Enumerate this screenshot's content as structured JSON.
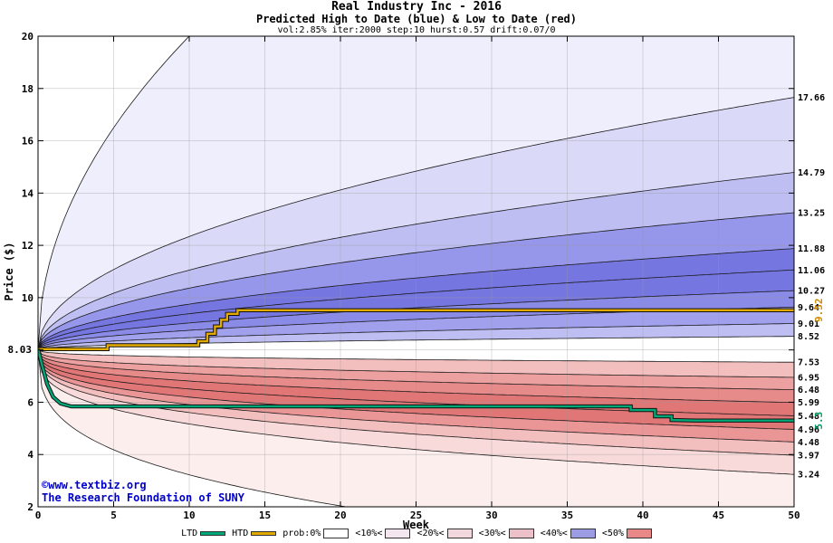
{
  "title": "Real Industry Inc - 2016",
  "subtitle": "Predicted High to Date (blue) &  Low to Date (red)",
  "params": "vol:2.85% iter:2000 step:10 hurst:0.57 drift:0.07/0",
  "watermark": {
    "line1": "©www.textbiz.org",
    "line2": "The Research Foundation of SUNY",
    "color": "#0000cc"
  },
  "legend": {
    "ltd_label": "LTD",
    "htd_label": "HTD",
    "prob_items": [
      {
        "label": "prob:0%",
        "color": "#ffffff"
      },
      {
        "label": "<10%<",
        "color": "#f4e6ee"
      },
      {
        "label": "<20%<",
        "color": "#f2d8dc"
      },
      {
        "label": "<30%<",
        "color": "#edbfc9"
      },
      {
        "label": "<40%<",
        "color": "#9c9ce4"
      },
      {
        "label": "<50%",
        "color": "#e88888"
      }
    ]
  },
  "chart_data": {
    "type": "area",
    "title": "Real Industry Inc - 2016",
    "xlabel": "Week",
    "ylabel": "Price ($)",
    "xlim": [
      0,
      50
    ],
    "ylim": [
      2,
      20
    ],
    "xticks": [
      0,
      5,
      10,
      15,
      20,
      25,
      30,
      35,
      40,
      45,
      50
    ],
    "yticks": [
      2,
      4,
      6,
      8,
      10,
      12,
      14,
      16,
      18,
      20
    ],
    "grid": true,
    "start_value": 8.03,
    "start_label": "8.03",
    "upper_fan": {
      "description": "predicted high-to-date probability bands (blue)",
      "shape_exponent": 0.5,
      "line_ends": [
        8.52,
        9.01,
        9.64,
        10.27,
        11.06,
        11.88,
        13.25,
        14.79,
        17.66
      ],
      "labels": [
        "8.52",
        "9.01",
        "9.64",
        "10.27",
        "11.06",
        "11.88",
        "13.25",
        "14.79",
        "17.66"
      ],
      "envelope_end": 34.8,
      "band_colors": [
        "#bebef3",
        "#a0a0ed",
        "#8a8ae7",
        "#7676e1",
        "#7676e1",
        "#9696ea",
        "#bebef3",
        "#dadaf8",
        "#eeeefd"
      ]
    },
    "lower_fan": {
      "description": "predicted low-to-date probability bands (red)",
      "shape_exponent": 0.32,
      "line_ends": [
        7.53,
        6.95,
        6.48,
        5.99,
        5.48,
        4.96,
        4.48,
        3.97,
        3.24
      ],
      "labels": [
        "7.53",
        "6.95",
        "6.48",
        "5.99",
        "5.48",
        "4.96",
        "4.48",
        "3.97",
        "3.24"
      ],
      "envelope_end": -0.01,
      "band_colors": [
        "#f3bebe",
        "#eda0a0",
        "#e78a8a",
        "#e17676",
        "#e17676",
        "#ea9696",
        "#f3bebe",
        "#f8dada",
        "#fdeeee"
      ]
    },
    "htd": {
      "label": "HTD",
      "color": "#e3aa00",
      "edge": "#111111",
      "right_label": "9.52",
      "right_label_color": "#cc8800",
      "final": 9.52,
      "points": [
        [
          0,
          8.03
        ],
        [
          4.6,
          8.03
        ],
        [
          4.6,
          8.18
        ],
        [
          10.6,
          8.18
        ],
        [
          10.6,
          8.33
        ],
        [
          11.2,
          8.33
        ],
        [
          11.2,
          8.62
        ],
        [
          11.7,
          8.62
        ],
        [
          11.7,
          8.9
        ],
        [
          12.1,
          8.9
        ],
        [
          12.1,
          9.15
        ],
        [
          12.5,
          9.15
        ],
        [
          12.5,
          9.38
        ],
        [
          13.2,
          9.38
        ],
        [
          13.2,
          9.52
        ],
        [
          50,
          9.52
        ]
      ]
    },
    "ltd": {
      "label": "LTD",
      "color": "#00a878",
      "edge": "#111111",
      "right_label": "5.3",
      "right_label_color": "#009960",
      "final": 5.3,
      "points": [
        [
          0,
          8.03
        ],
        [
          0.25,
          7.45
        ],
        [
          0.6,
          6.7
        ],
        [
          1.0,
          6.2
        ],
        [
          1.5,
          5.95
        ],
        [
          2.2,
          5.84
        ],
        [
          39.2,
          5.84
        ],
        [
          39.2,
          5.7
        ],
        [
          40.8,
          5.7
        ],
        [
          40.8,
          5.46
        ],
        [
          41.9,
          5.46
        ],
        [
          41.9,
          5.32
        ],
        [
          43.5,
          5.3
        ],
        [
          50,
          5.3
        ]
      ]
    }
  }
}
